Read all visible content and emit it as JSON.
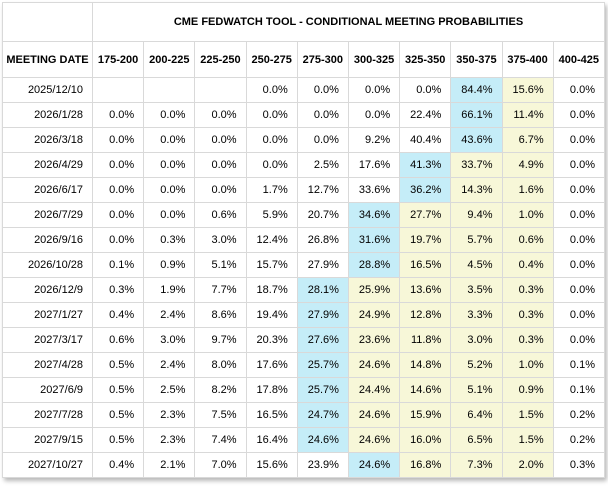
{
  "colors": {
    "modal_highlight": "#c5edf8",
    "tail_highlight": "#f7f7d8",
    "grid_line": "#d9d9d9",
    "outer_border": "#c2c2c2",
    "text": "#000000",
    "background": "#ffffff"
  },
  "chart_data": {
    "type": "table",
    "title": "CME FEDWATCH TOOL - CONDITIONAL MEETING PROBABILITIES",
    "columns": [
      "MEETING DATE",
      "175-200",
      "200-225",
      "225-250",
      "250-275",
      "275-300",
      "300-325",
      "325-350",
      "350-375",
      "375-400",
      "400-425"
    ],
    "highlight_legend": {
      "blue": "highest probability cell in row",
      "yellow": "cells right of the highest probability through 375-400"
    },
    "rows": [
      {
        "date": "2025/12/10",
        "values": [
          "",
          "",
          "",
          "0.0%",
          "0.0%",
          "0.0%",
          "0.0%",
          "84.4%",
          "15.6%",
          "0.0%"
        ],
        "highlight": [
          "",
          "",
          "",
          "",
          "",
          "",
          "",
          "blue",
          "yellow",
          ""
        ]
      },
      {
        "date": "2026/1/28",
        "values": [
          "0.0%",
          "0.0%",
          "0.0%",
          "0.0%",
          "0.0%",
          "0.0%",
          "22.4%",
          "66.1%",
          "11.4%",
          "0.0%"
        ],
        "highlight": [
          "",
          "",
          "",
          "",
          "",
          "",
          "",
          "blue",
          "yellow",
          ""
        ]
      },
      {
        "date": "2026/3/18",
        "values": [
          "0.0%",
          "0.0%",
          "0.0%",
          "0.0%",
          "0.0%",
          "9.2%",
          "40.4%",
          "43.6%",
          "6.7%",
          "0.0%"
        ],
        "highlight": [
          "",
          "",
          "",
          "",
          "",
          "",
          "",
          "blue",
          "yellow",
          ""
        ]
      },
      {
        "date": "2026/4/29",
        "values": [
          "0.0%",
          "0.0%",
          "0.0%",
          "0.0%",
          "2.5%",
          "17.6%",
          "41.3%",
          "33.7%",
          "4.9%",
          "0.0%"
        ],
        "highlight": [
          "",
          "",
          "",
          "",
          "",
          "",
          "blue",
          "yellow",
          "yellow",
          ""
        ]
      },
      {
        "date": "2026/6/17",
        "values": [
          "0.0%",
          "0.0%",
          "0.0%",
          "1.7%",
          "12.7%",
          "33.6%",
          "36.2%",
          "14.3%",
          "1.6%",
          "0.0%"
        ],
        "highlight": [
          "",
          "",
          "",
          "",
          "",
          "",
          "blue",
          "yellow",
          "yellow",
          ""
        ]
      },
      {
        "date": "2026/7/29",
        "values": [
          "0.0%",
          "0.0%",
          "0.6%",
          "5.9%",
          "20.7%",
          "34.6%",
          "27.7%",
          "9.4%",
          "1.0%",
          "0.0%"
        ],
        "highlight": [
          "",
          "",
          "",
          "",
          "",
          "blue",
          "yellow",
          "yellow",
          "yellow",
          ""
        ]
      },
      {
        "date": "2026/9/16",
        "values": [
          "0.0%",
          "0.3%",
          "3.0%",
          "12.4%",
          "26.8%",
          "31.6%",
          "19.7%",
          "5.7%",
          "0.6%",
          "0.0%"
        ],
        "highlight": [
          "",
          "",
          "",
          "",
          "",
          "blue",
          "yellow",
          "yellow",
          "yellow",
          ""
        ]
      },
      {
        "date": "2026/10/28",
        "values": [
          "0.1%",
          "0.9%",
          "5.1%",
          "15.7%",
          "27.9%",
          "28.8%",
          "16.5%",
          "4.5%",
          "0.4%",
          "0.0%"
        ],
        "highlight": [
          "",
          "",
          "",
          "",
          "",
          "blue",
          "yellow",
          "yellow",
          "yellow",
          ""
        ]
      },
      {
        "date": "2026/12/9",
        "values": [
          "0.3%",
          "1.9%",
          "7.7%",
          "18.7%",
          "28.1%",
          "25.9%",
          "13.6%",
          "3.5%",
          "0.3%",
          "0.0%"
        ],
        "highlight": [
          "",
          "",
          "",
          "",
          "blue",
          "yellow",
          "yellow",
          "yellow",
          "yellow",
          ""
        ]
      },
      {
        "date": "2027/1/27",
        "values": [
          "0.4%",
          "2.4%",
          "8.6%",
          "19.4%",
          "27.9%",
          "24.9%",
          "12.8%",
          "3.3%",
          "0.3%",
          "0.0%"
        ],
        "highlight": [
          "",
          "",
          "",
          "",
          "blue",
          "yellow",
          "yellow",
          "yellow",
          "yellow",
          ""
        ]
      },
      {
        "date": "2027/3/17",
        "values": [
          "0.6%",
          "3.0%",
          "9.7%",
          "20.3%",
          "27.6%",
          "23.6%",
          "11.8%",
          "3.0%",
          "0.3%",
          "0.0%"
        ],
        "highlight": [
          "",
          "",
          "",
          "",
          "blue",
          "yellow",
          "yellow",
          "yellow",
          "yellow",
          ""
        ]
      },
      {
        "date": "2027/4/28",
        "values": [
          "0.5%",
          "2.4%",
          "8.0%",
          "17.6%",
          "25.7%",
          "24.6%",
          "14.8%",
          "5.2%",
          "1.0%",
          "0.1%"
        ],
        "highlight": [
          "",
          "",
          "",
          "",
          "blue",
          "yellow",
          "yellow",
          "yellow",
          "yellow",
          ""
        ]
      },
      {
        "date": "2027/6/9",
        "values": [
          "0.5%",
          "2.5%",
          "8.2%",
          "17.8%",
          "25.7%",
          "24.4%",
          "14.6%",
          "5.1%",
          "0.9%",
          "0.1%"
        ],
        "highlight": [
          "",
          "",
          "",
          "",
          "blue",
          "yellow",
          "yellow",
          "yellow",
          "yellow",
          ""
        ]
      },
      {
        "date": "2027/7/28",
        "values": [
          "0.5%",
          "2.3%",
          "7.5%",
          "16.5%",
          "24.7%",
          "24.6%",
          "15.9%",
          "6.4%",
          "1.5%",
          "0.2%"
        ],
        "highlight": [
          "",
          "",
          "",
          "",
          "blue",
          "yellow",
          "yellow",
          "yellow",
          "yellow",
          ""
        ]
      },
      {
        "date": "2027/9/15",
        "values": [
          "0.5%",
          "2.3%",
          "7.4%",
          "16.4%",
          "24.6%",
          "24.6%",
          "16.0%",
          "6.5%",
          "1.5%",
          "0.2%"
        ],
        "highlight": [
          "",
          "",
          "",
          "",
          "blue",
          "yellow",
          "yellow",
          "yellow",
          "yellow",
          ""
        ]
      },
      {
        "date": "2027/10/27",
        "values": [
          "0.4%",
          "2.1%",
          "7.0%",
          "15.6%",
          "23.9%",
          "24.6%",
          "16.8%",
          "7.3%",
          "2.0%",
          "0.3%"
        ],
        "highlight": [
          "",
          "",
          "",
          "",
          "",
          "blue",
          "yellow",
          "yellow",
          "yellow",
          ""
        ]
      }
    ]
  }
}
